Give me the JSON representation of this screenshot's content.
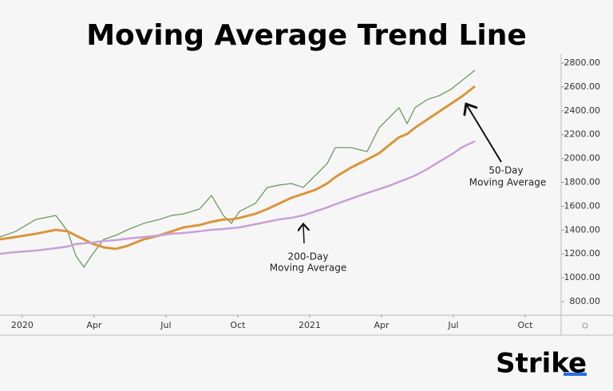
{
  "chart_data": {
    "type": "line",
    "title": "Moving Average Trend Line",
    "brand": "Strike",
    "annotations": [
      [
        "50-Day",
        "Moving Average"
      ],
      [
        "200-Day",
        "Moving Average"
      ]
    ],
    "x": [
      -0.93,
      -0.27,
      0.57,
      1.4,
      1.9,
      2.23,
      2.57,
      2.9,
      3.4,
      3.9,
      4.4,
      5.07,
      5.73,
      6.23,
      6.73,
      7.4,
      7.9,
      8.4,
      8.73,
      9.07,
      9.73,
      10.23,
      10.73,
      11.23,
      11.73,
      12.23,
      12.73,
      13.07,
      13.73,
      14.4,
      14.9,
      15.4,
      15.73,
      16.07,
      16.4,
      16.9,
      17.4,
      17.9,
      18.4,
      18.9
    ],
    "series": [
      {
        "color": "#6f9a62",
        "values": [
          1342,
          1389,
          1489,
          1522,
          1389,
          1188,
          1088,
          1188,
          1322,
          1355,
          1402,
          1456,
          1489,
          1522,
          1536,
          1576,
          1690,
          1522,
          1456,
          1556,
          1623,
          1757,
          1777,
          1790,
          1757,
          1857,
          1957,
          2091,
          2091,
          2058,
          2258,
          2359,
          2426,
          2292,
          2426,
          2493,
          2526,
          2580,
          2660,
          2740
        ]
      },
      {
        "color": "#d9963a",
        "values": [
          1322,
          1342,
          1369,
          1402,
          1389,
          1355,
          1322,
          1288,
          1255,
          1242,
          1268,
          1322,
          1355,
          1389,
          1422,
          1442,
          1469,
          1489,
          1489,
          1502,
          1536,
          1576,
          1623,
          1670,
          1703,
          1737,
          1790,
          1844,
          1924,
          1991,
          2044,
          2125,
          2178,
          2205,
          2258,
          2325,
          2392,
          2459,
          2526,
          2606
        ]
      },
      {
        "color": "#c9a0d6",
        "values": [
          1201,
          1215,
          1228,
          1248,
          1262,
          1282,
          1288,
          1295,
          1308,
          1315,
          1328,
          1342,
          1355,
          1369,
          1375,
          1389,
          1402,
          1409,
          1415,
          1422,
          1449,
          1469,
          1489,
          1502,
          1523,
          1556,
          1589,
          1616,
          1663,
          1710,
          1743,
          1777,
          1804,
          1830,
          1857,
          1911,
          1971,
          2031,
          2098,
          2145
        ]
      }
    ],
    "xlim": [
      -0.93,
      22.5
    ],
    "ylim": [
      686,
      2874
    ],
    "xticks": [
      {
        "value": 0,
        "label": "2020"
      },
      {
        "value": 3,
        "label": "Apr"
      },
      {
        "value": 6,
        "label": "Jul"
      },
      {
        "value": 9,
        "label": "Oct"
      },
      {
        "value": 12,
        "label": "2021"
      },
      {
        "value": 15,
        "label": "Apr"
      },
      {
        "value": 18,
        "label": "Jul"
      },
      {
        "value": 21,
        "label": "Oct"
      }
    ],
    "yticks": [
      {
        "value": 800,
        "label": "800.00"
      },
      {
        "value": 1000,
        "label": "1000.00"
      },
      {
        "value": 1200,
        "label": "1200.00"
      },
      {
        "value": 1400,
        "label": "1400.00"
      },
      {
        "value": 1600,
        "label": "1600.00"
      },
      {
        "value": 1800,
        "label": "1800.00"
      },
      {
        "value": 2000,
        "label": "2000.00"
      },
      {
        "value": 2200,
        "label": "2200.00"
      },
      {
        "value": 2400,
        "label": "2400.00"
      },
      {
        "value": 2600,
        "label": "2600.00"
      },
      {
        "value": 2800,
        "label": "2800.00"
      }
    ],
    "grid": false
  }
}
